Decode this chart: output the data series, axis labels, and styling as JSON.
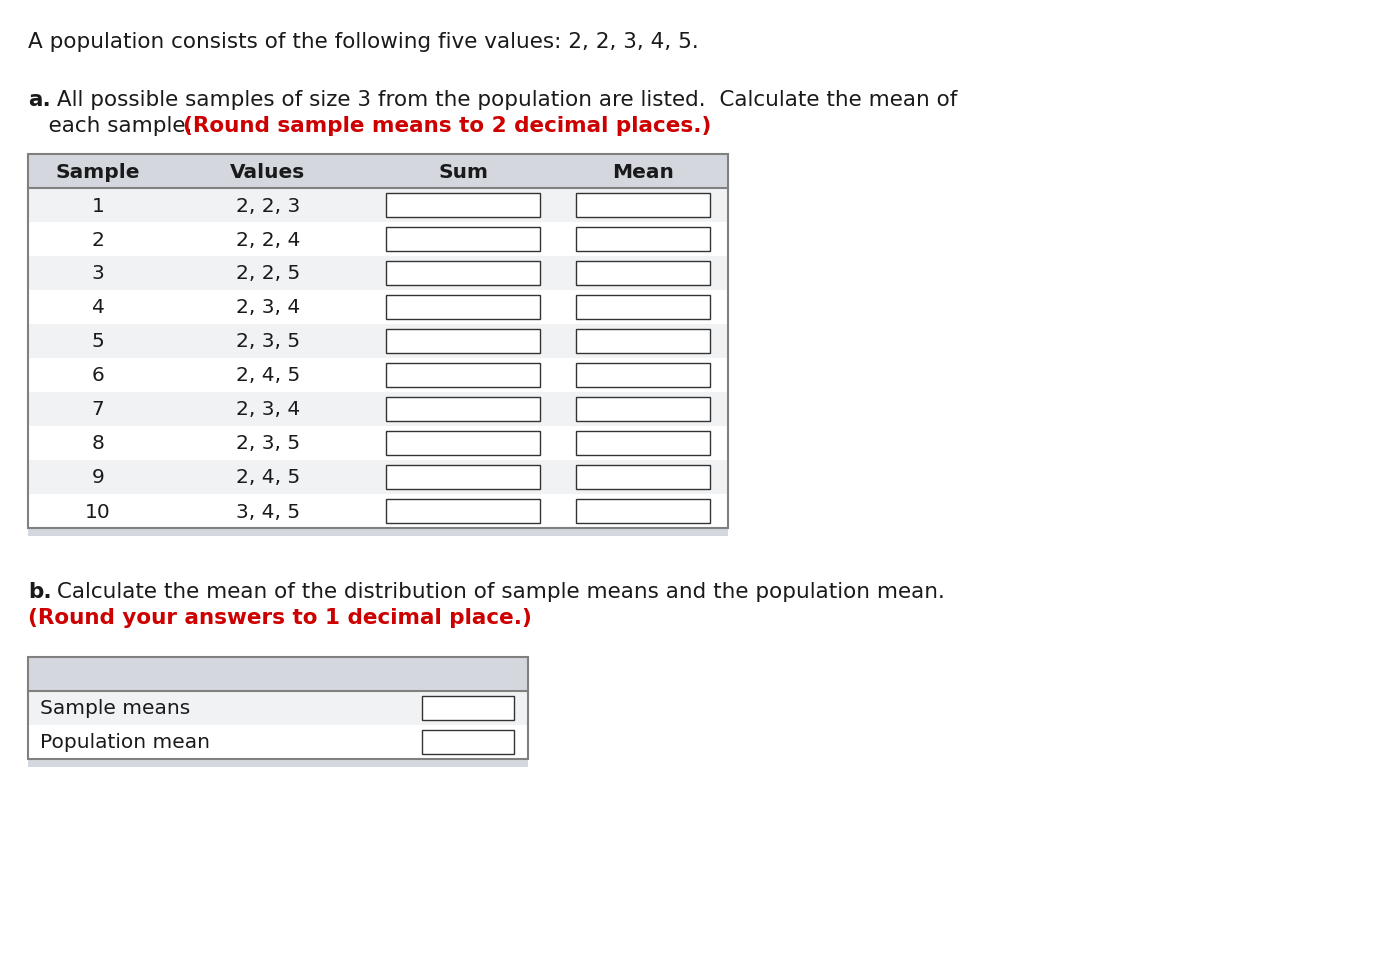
{
  "title_line": "A population consists of the following five values: 2, 2, 3, 4, 5.",
  "part_a_bold": "a.",
  "part_a_rest": " All possible samples of size 3 from the population are listed.  Calculate the mean of",
  "part_a_line2_normal": "   each sample. ",
  "part_a_red": "(Round sample means to 2 decimal places.)",
  "part_b_bold": "b.",
  "part_b_rest": " Calculate the mean of the distribution of sample means and the population mean.",
  "part_b_red": "(Round your answers to 1 decimal place.)",
  "table_headers": [
    "Sample",
    "Values",
    "Sum",
    "Mean"
  ],
  "samples": [
    "1",
    "2",
    "3",
    "4",
    "5",
    "6",
    "7",
    "8",
    "9",
    "10"
  ],
  "values": [
    "2, 2, 3",
    "2, 2, 4",
    "2, 2, 5",
    "2, 3, 4",
    "2, 3, 5",
    "2, 4, 5",
    "2, 3, 4",
    "2, 3, 5",
    "2, 4, 5",
    "3, 4, 5"
  ],
  "background_color": "#ffffff",
  "header_bg": "#d4d8de",
  "row_bg_alt": "#f0f2f4",
  "row_bg_white": "#ffffff",
  "input_box_color": "#ffffff",
  "text_color": "#1a1a1a",
  "red_color": "#cc0000",
  "font_size_title": 15.5,
  "font_size_body": 15.5,
  "font_size_table": 14.5
}
